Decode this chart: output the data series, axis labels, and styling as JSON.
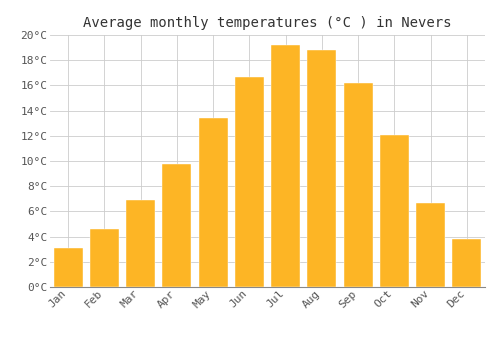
{
  "title": "Average monthly temperatures (°C ) in Nevers",
  "months": [
    "Jan",
    "Feb",
    "Mar",
    "Apr",
    "May",
    "Jun",
    "Jul",
    "Aug",
    "Sep",
    "Oct",
    "Nov",
    "Dec"
  ],
  "values": [
    3.1,
    4.6,
    6.9,
    9.8,
    13.4,
    16.7,
    19.2,
    18.8,
    16.2,
    12.1,
    6.7,
    3.8
  ],
  "bar_color_top": "#FDB525",
  "bar_color_bottom": "#F5A800",
  "ylim": [
    0,
    20
  ],
  "yticks": [
    0,
    2,
    4,
    6,
    8,
    10,
    12,
    14,
    16,
    18,
    20
  ],
  "ytick_labels": [
    "0°C",
    "2°C",
    "4°C",
    "6°C",
    "8°C",
    "10°C",
    "12°C",
    "14°C",
    "16°C",
    "18°C",
    "20°C"
  ],
  "background_color": "#FFFFFF",
  "grid_color": "#CCCCCC",
  "title_fontsize": 10,
  "tick_fontsize": 8,
  "font_family": "monospace",
  "bar_width": 0.8
}
